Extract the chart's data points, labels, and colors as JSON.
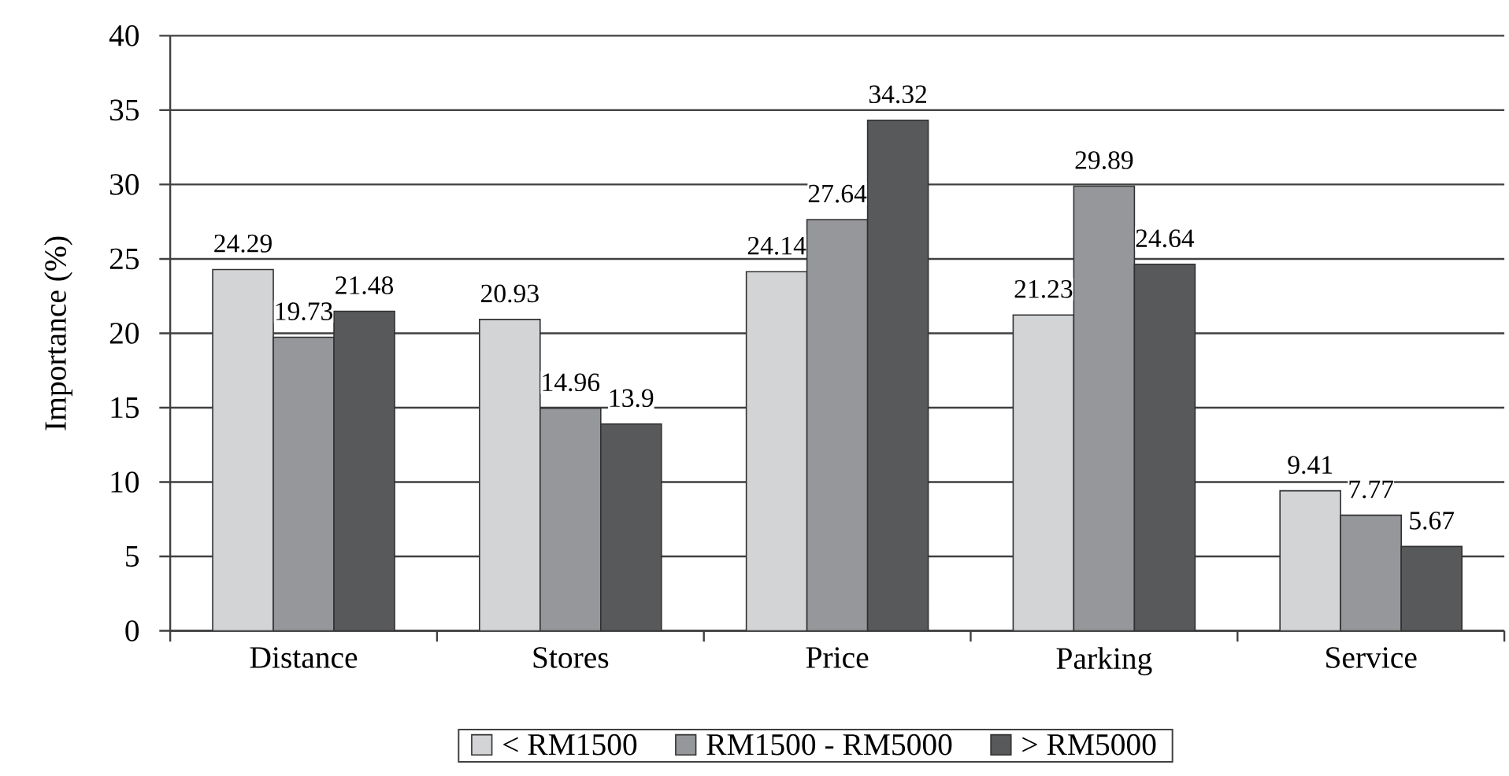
{
  "chart_data": {
    "type": "bar",
    "ylabel": "Importance (%)",
    "categories": [
      "Distance",
      "Stores",
      "Price",
      "Parking",
      "Service"
    ],
    "series": [
      {
        "name": "< RM1500",
        "color": "#d3d4d6",
        "values": [
          24.29,
          20.93,
          24.14,
          21.23,
          9.41
        ]
      },
      {
        "name": "RM1500 - RM5000",
        "color": "#96979a",
        "values": [
          19.73,
          14.96,
          27.64,
          29.89,
          7.77
        ]
      },
      {
        "name": "> RM5000",
        "color": "#58595b",
        "values": [
          21.48,
          13.9,
          34.32,
          24.64,
          5.67
        ]
      }
    ],
    "ylim": [
      0,
      40
    ],
    "yticks": [
      0,
      5,
      10,
      15,
      20,
      25,
      30,
      35,
      40
    ],
    "grid": "y",
    "data_labels": true,
    "legend": "bottom"
  }
}
